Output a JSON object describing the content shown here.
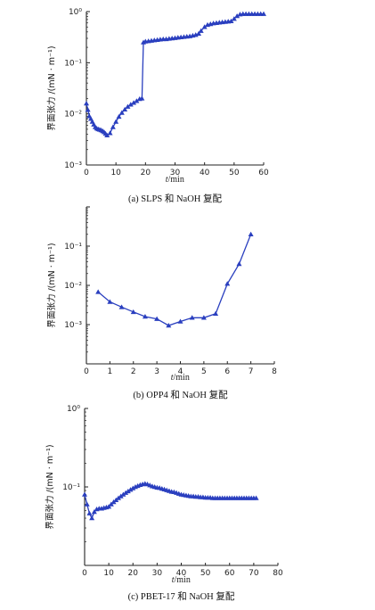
{
  "chart_data": [
    {
      "type": "line",
      "caption": "(a) SLPS 和 NaOH 复配",
      "xlabel_var": "t",
      "xlabel_unit": "/min",
      "ylabel": "界面张力 /(mN · m⁻¹)",
      "yscale": "log",
      "xlim": [
        0,
        60
      ],
      "ylim": [
        0.001,
        1
      ],
      "xticks": [
        "0",
        "10",
        "20",
        "30",
        "40",
        "50",
        "60"
      ],
      "yticks": [
        {
          "label": "10⁰",
          "value": 1
        },
        {
          "label": "10⁻¹",
          "value": 0.1
        },
        {
          "label": "10⁻²",
          "value": 0.01
        },
        {
          "label": "10⁻³",
          "value": 0.001
        }
      ],
      "color": "#2a3fbf",
      "marker": "triangle",
      "series": [
        {
          "x": [
            0,
            0.5,
            1,
            1.5,
            2,
            2.5,
            3,
            3.5,
            4,
            4.5,
            5,
            5.5,
            6,
            6.5,
            7,
            8,
            9,
            10,
            11,
            12,
            13,
            14,
            15,
            16,
            17,
            18,
            18.8,
            19.3,
            20,
            21,
            22,
            23,
            24,
            25,
            26,
            27,
            28,
            29,
            30,
            31,
            32,
            33,
            34,
            35,
            36,
            37,
            38,
            38.8,
            40,
            41,
            42,
            43,
            44,
            45,
            46,
            47,
            48,
            49,
            50,
            51,
            52,
            53,
            54,
            55,
            56,
            57,
            58,
            59,
            60
          ],
          "y": [
            0.016,
            0.012,
            0.009,
            0.008,
            0.007,
            0.0062,
            0.0055,
            0.0052,
            0.005,
            0.0049,
            0.0048,
            0.0046,
            0.0044,
            0.0041,
            0.0038,
            0.0042,
            0.0055,
            0.007,
            0.0088,
            0.0105,
            0.0122,
            0.0138,
            0.0152,
            0.0165,
            0.0178,
            0.0195,
            0.02,
            0.25,
            0.26,
            0.265,
            0.27,
            0.275,
            0.28,
            0.285,
            0.29,
            0.29,
            0.295,
            0.3,
            0.305,
            0.31,
            0.315,
            0.32,
            0.325,
            0.33,
            0.34,
            0.35,
            0.37,
            0.42,
            0.5,
            0.55,
            0.57,
            0.59,
            0.6,
            0.61,
            0.62,
            0.63,
            0.64,
            0.65,
            0.72,
            0.82,
            0.88,
            0.9,
            0.9,
            0.9,
            0.9,
            0.9,
            0.9,
            0.9,
            0.9
          ]
        }
      ]
    },
    {
      "type": "line",
      "caption": "(b) OPP4 和 NaOH 复配",
      "xlabel_var": "t",
      "xlabel_unit": "/min",
      "ylabel": "界面张力 /(mN · m⁻¹)",
      "yscale": "log",
      "xlim": [
        0,
        8
      ],
      "ylim": [
        0.0001,
        1
      ],
      "xticks": [
        "0",
        "1",
        "2",
        "3",
        "4",
        "5",
        "6",
        "7",
        "8"
      ],
      "yticks": [
        {
          "label": "10⁻¹",
          "value": 0.1
        },
        {
          "label": "10⁻²",
          "value": 0.01
        },
        {
          "label": "10⁻³",
          "value": 0.001
        }
      ],
      "color": "#2a3fbf",
      "marker": "triangle",
      "series": [
        {
          "x": [
            0.5,
            1,
            1.5,
            2,
            2.5,
            3,
            3.5,
            4,
            4.5,
            5,
            5.5,
            6,
            6.5,
            7
          ],
          "y": [
            0.0068,
            0.0038,
            0.0028,
            0.0021,
            0.0016,
            0.0014,
            0.00095,
            0.0012,
            0.0015,
            0.0015,
            0.0019,
            0.011,
            0.035,
            0.2
          ]
        }
      ]
    },
    {
      "type": "line",
      "caption": "(c) PBET-17 和 NaOH 复配",
      "xlabel_var": "t",
      "xlabel_unit": "/min",
      "ylabel": "界面张力 /(mN · m⁻¹)",
      "yscale": "log",
      "xlim": [
        0,
        80
      ],
      "ylim": [
        0.01,
        1
      ],
      "xticks": [
        "0",
        "10",
        "20",
        "30",
        "40",
        "50",
        "60",
        "70",
        "80"
      ],
      "yticks": [
        {
          "label": "10⁰",
          "value": 1
        },
        {
          "label": "10⁻¹",
          "value": 0.1
        }
      ],
      "color": "#2a3fbf",
      "marker": "triangle",
      "series": [
        {
          "x": [
            0,
            1,
            2,
            3,
            4,
            5,
            6,
            7,
            8,
            9,
            10,
            11,
            12,
            13,
            14,
            15,
            16,
            17,
            18,
            19,
            20,
            21,
            22,
            23,
            24,
            25,
            26,
            27,
            28,
            29,
            30,
            31,
            32,
            33,
            34,
            35,
            36,
            37,
            38,
            39,
            40,
            41,
            42,
            43,
            44,
            45,
            46,
            47,
            48,
            49,
            50,
            51,
            52,
            53,
            54,
            55,
            56,
            57,
            58,
            59,
            60,
            61,
            62,
            63,
            64,
            65,
            66,
            67,
            68,
            69,
            70,
            71
          ],
          "y": [
            0.08,
            0.06,
            0.046,
            0.04,
            0.048,
            0.052,
            0.053,
            0.053,
            0.054,
            0.055,
            0.056,
            0.06,
            0.064,
            0.068,
            0.072,
            0.076,
            0.08,
            0.084,
            0.088,
            0.092,
            0.096,
            0.1,
            0.103,
            0.106,
            0.108,
            0.11,
            0.108,
            0.105,
            0.102,
            0.1,
            0.098,
            0.097,
            0.095,
            0.093,
            0.091,
            0.089,
            0.087,
            0.086,
            0.084,
            0.082,
            0.08,
            0.079,
            0.078,
            0.077,
            0.076,
            0.076,
            0.075,
            0.075,
            0.074,
            0.074,
            0.073,
            0.073,
            0.073,
            0.072,
            0.072,
            0.072,
            0.072,
            0.072,
            0.072,
            0.072,
            0.072,
            0.072,
            0.072,
            0.072,
            0.072,
            0.072,
            0.072,
            0.072,
            0.072,
            0.072,
            0.072,
            0.072
          ]
        }
      ]
    }
  ]
}
